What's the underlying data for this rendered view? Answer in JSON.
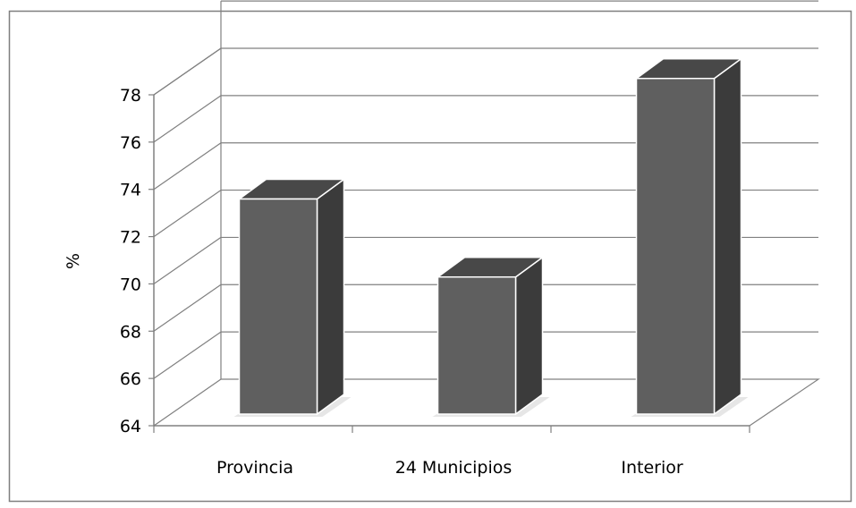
{
  "chart_data": {
    "type": "bar",
    "categories": [
      "Provincia",
      "24 Municipios",
      "Interior"
    ],
    "values": [
      73.1,
      69.8,
      78.2
    ],
    "ylabel": "%",
    "xlabel": "",
    "ylim": [
      64,
      78
    ],
    "yticks": [
      64,
      66,
      68,
      70,
      72,
      74,
      76,
      78
    ],
    "grid": true,
    "three_d": true,
    "legend": "none",
    "colors": {
      "bar_front": "#5f5f5f",
      "bar_side": "#3b3b3b",
      "bar_top": "#484848",
      "gridline": "#808080",
      "frame": "#7f7f7f"
    }
  }
}
